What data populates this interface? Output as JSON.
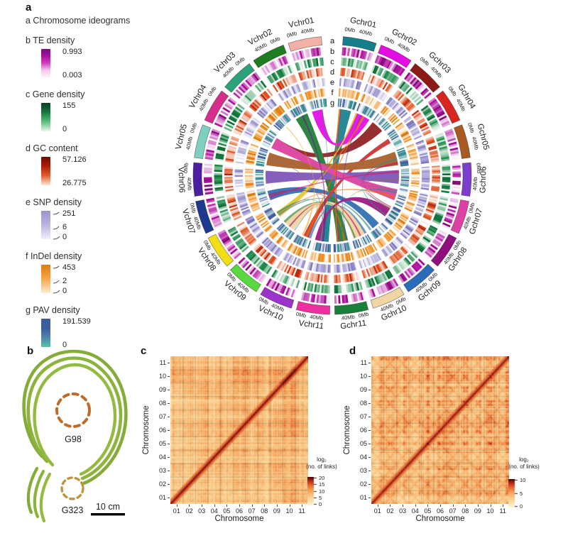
{
  "figure": {
    "panel_labels": {
      "a": "a",
      "b": "b",
      "c": "c",
      "d": "d"
    }
  },
  "legend": {
    "items": [
      {
        "key": "a",
        "title": "a Chromosome ideograms",
        "type": "text"
      },
      {
        "key": "b",
        "title": "b TE density",
        "type": "gradient",
        "gradient": [
          "#7A0B7A",
          "#A511A0",
          "#D33FBC",
          "#F3C9EC",
          "#FBF2FA"
        ],
        "labels": [
          {
            "text": "0.993",
            "pos": "top"
          },
          {
            "text": "0.003",
            "pos": "bottom"
          }
        ]
      },
      {
        "key": "c",
        "title": "c Gene density",
        "type": "gradient",
        "gradient": [
          "#083F20",
          "#157840",
          "#5DBE7A",
          "#EAF6EC"
        ],
        "labels": [
          {
            "text": "155",
            "pos": "top"
          },
          {
            "text": "0",
            "pos": "bottom"
          }
        ]
      },
      {
        "key": "d",
        "title": "d GC content",
        "type": "gradient",
        "gradient": [
          "#6E0B02",
          "#B01C08",
          "#E2602F",
          "#F8E8D8"
        ],
        "labels": [
          {
            "text": "57.126",
            "pos": "top"
          },
          {
            "text": "26.775",
            "pos": "bottom"
          }
        ]
      },
      {
        "key": "e",
        "title": "e SNP density",
        "type": "gradient",
        "leaders": true,
        "gradient": [
          "#9A94CC",
          "#B9B5DE",
          "#F0EFF8"
        ],
        "labels": [
          {
            "text": "251",
            "pos": "top"
          },
          {
            "text": "6",
            "pos": "mid"
          },
          {
            "text": "0",
            "pos": "bottom"
          }
        ]
      },
      {
        "key": "f",
        "title": "f InDel density",
        "type": "gradient",
        "leaders": true,
        "gradient": [
          "#E07C08",
          "#F2A84C",
          "#FCEBD4"
        ],
        "labels": [
          {
            "text": "453",
            "pos": "top"
          },
          {
            "text": "2",
            "pos": "mid"
          },
          {
            "text": "0",
            "pos": "bottom"
          }
        ]
      },
      {
        "key": "g",
        "title": "g PAV density",
        "type": "gradient",
        "gradient": [
          "#3D5C9E",
          "#3D5C9E",
          "#4E86A8",
          "#57C4A8"
        ],
        "labels": [
          {
            "text": "191.539",
            "pos": "top"
          },
          {
            "text": "0",
            "pos": "bottom"
          }
        ]
      }
    ]
  },
  "circos": {
    "ring_letters": [
      "a",
      "b",
      "c",
      "d",
      "e",
      "f",
      "g"
    ],
    "tick_labels": [
      "0Mb",
      "40Mb"
    ],
    "g_chromosomes": [
      {
        "name": "Gchr01",
        "color": "#147E8C"
      },
      {
        "name": "Gchr02",
        "color": "#E40EE4"
      },
      {
        "name": "Gchr03",
        "color": "#8C1A17"
      },
      {
        "name": "Gchr04",
        "color": "#DA2420"
      },
      {
        "name": "Gchr05",
        "color": "#A85A22"
      },
      {
        "name": "Gchr06",
        "color": "#7C3ECC"
      },
      {
        "name": "Gchr07",
        "color": "#DE41A6"
      },
      {
        "name": "Gchr08",
        "color": "#8F0F7E"
      },
      {
        "name": "Gchr09",
        "color": "#2A6CBA"
      },
      {
        "name": "Gchr10",
        "color": "#F1D6A4"
      },
      {
        "name": "Gchr11",
        "color": "#18803B"
      }
    ],
    "v_chromosomes": [
      {
        "name": "Vchr01",
        "color": "#F2B0A6"
      },
      {
        "name": "Vchr02",
        "color": "#1E7C21"
      },
      {
        "name": "Vchr03",
        "color": "#2BA27B"
      },
      {
        "name": "Vchr04",
        "color": "#D62E8C"
      },
      {
        "name": "Vchr05",
        "color": "#7FD0BE"
      },
      {
        "name": "Vchr06",
        "color": "#4A1FA0"
      },
      {
        "name": "Vchr07",
        "color": "#1E3A8F"
      },
      {
        "name": "Vchr08",
        "color": "#F2DE14"
      },
      {
        "name": "Vchr09",
        "color": "#57D93F"
      },
      {
        "name": "Vchr10",
        "color": "#9C33CB"
      },
      {
        "name": "Vchr11",
        "color": "#EE2F9F"
      }
    ],
    "rings": [
      {
        "letter": "b",
        "name": "TE density",
        "base": "#B012A0",
        "dark": "#700A64"
      },
      {
        "letter": "c",
        "name": "Gene density",
        "base": "#1E8A4A",
        "dark": "#0A5A2E"
      },
      {
        "letter": "d",
        "name": "GC content",
        "base": "#E05A28",
        "dark": "#A31208"
      },
      {
        "letter": "e",
        "name": "SNP density",
        "base": "#9B94CE",
        "dark": "#6E66B0"
      },
      {
        "letter": "f",
        "name": "InDel density",
        "base": "#F09020",
        "dark": "#C86E08"
      },
      {
        "letter": "g",
        "name": "PAV density",
        "base": "#3E5C9C",
        "dark": "#2E8B8B"
      }
    ],
    "links": [
      {
        "from": "Gchr01",
        "f0": 0.15,
        "f1": 0.85,
        "to": "Vchr11",
        "t0": 0.15,
        "t1": 0.75,
        "color": "#167F8C"
      },
      {
        "from": "Gchr03",
        "f0": 0.05,
        "f1": 0.85,
        "to": "Vchr04",
        "t0": 0.25,
        "t1": 0.75,
        "color": "#8E1F1F"
      },
      {
        "from": "Gchr02",
        "f0": 0.05,
        "f1": 0.95,
        "to": "Vchr01",
        "t0": 0.05,
        "t1": 0.7,
        "color": "#E20AE2"
      },
      {
        "from": "Gchr11",
        "f0": 0.1,
        "f1": 0.8,
        "to": "Vchr02",
        "t0": 0.1,
        "t1": 0.9,
        "color": "#1D7A33"
      },
      {
        "from": "Gchr09",
        "f0": 0.2,
        "f1": 0.7,
        "to": "Vchr07",
        "t0": 0.2,
        "t1": 0.8,
        "color": "#2D6CB5"
      },
      {
        "from": "Gchr10",
        "f0": 0.1,
        "f1": 0.9,
        "to": "Vchr09",
        "t0": 0.15,
        "t1": 0.85,
        "color": "#EFD3A2"
      },
      {
        "from": "Vchr11",
        "f0": 0.7,
        "f1": 1.0,
        "to": "Gchr08",
        "t0": 0.2,
        "t1": 0.8,
        "color": "#9C1580"
      },
      {
        "from": "Vchr10",
        "f0": 0.25,
        "f1": 0.6,
        "to": "Gchr04",
        "t0": 0.3,
        "t1": 0.6,
        "color": "#C83030"
      },
      {
        "from": "Vchr08",
        "f0": 0.25,
        "f1": 0.55,
        "to": "Gchr02",
        "t0": 0.0,
        "t1": 0.1,
        "color": "#E0C820"
      },
      {
        "from": "Gchr05",
        "f0": 0.05,
        "f1": 0.9,
        "to": "Vchr05",
        "t0": 0.1,
        "t1": 0.9,
        "color": "#A85C28"
      },
      {
        "from": "Gchr06",
        "f0": 0.05,
        "f1": 0.9,
        "to": "Vchr06",
        "t0": 0.1,
        "t1": 0.9,
        "color": "#7C52B8"
      },
      {
        "from": "Gchr07",
        "f0": 0.1,
        "f1": 0.8,
        "to": "Vchr04",
        "t0": 0.05,
        "t1": 0.75,
        "color": "#DC3C9C"
      }
    ]
  },
  "panel_b": {
    "top_label": "G98",
    "bottom_label": "G323",
    "scale_label": "10 cm"
  },
  "heatmaps": [
    {
      "id": "c",
      "xlabel": "Chromosome",
      "ylabel": "Chromosome",
      "xticks": [
        "01",
        "02",
        "03",
        "04",
        "05",
        "06",
        "07",
        "08",
        "09",
        "10",
        "11"
      ],
      "yticks": [
        "11",
        "10",
        "09",
        "08",
        "07",
        "06",
        "05",
        "04",
        "03",
        "02",
        "01"
      ],
      "colorbar": {
        "title_line1": "log₂",
        "title_line2": "(no. of links)",
        "ticks": [
          "20",
          "15",
          "10",
          "5",
          "0"
        ]
      }
    },
    {
      "id": "d",
      "xlabel": "Chromosome",
      "ylabel": "Chromosome",
      "xticks": [
        "01",
        "02",
        "03",
        "04",
        "05",
        "06",
        "07",
        "08",
        "09",
        "10",
        "11"
      ],
      "yticks": [
        "11",
        "10",
        "09",
        "08",
        "07",
        "06",
        "05",
        "04",
        "03",
        "02",
        "01"
      ],
      "colorbar": {
        "title_line1": "log₂",
        "title_line2": "(no. of links)",
        "ticks": [
          "10",
          "5",
          "0"
        ]
      }
    }
  ],
  "chart_data": [
    {
      "type": "heatmap",
      "panel": "c",
      "xlabel": "Chromosome",
      "ylabel": "Chromosome",
      "x_categories": [
        "01",
        "02",
        "03",
        "04",
        "05",
        "06",
        "07",
        "08",
        "09",
        "10",
        "11"
      ],
      "y_categories": [
        "01",
        "02",
        "03",
        "04",
        "05",
        "06",
        "07",
        "08",
        "09",
        "10",
        "11"
      ],
      "colorbar_label": "log₂ (no. of links)",
      "colorbar_ticks": [
        0,
        5,
        10,
        15,
        20
      ],
      "value_range": [
        0,
        20
      ],
      "legend_position": "right",
      "pattern": "Hi-C contact map: strong dark-red main diagonal, orange plaid inter-chromosomal background"
    },
    {
      "type": "heatmap",
      "panel": "d",
      "xlabel": "Chromosome",
      "ylabel": "Chromosome",
      "x_categories": [
        "01",
        "02",
        "03",
        "04",
        "05",
        "06",
        "07",
        "08",
        "09",
        "10",
        "11"
      ],
      "y_categories": [
        "01",
        "02",
        "03",
        "04",
        "05",
        "06",
        "07",
        "08",
        "09",
        "10",
        "11"
      ],
      "colorbar_label": "log₂ (no. of links)",
      "colorbar_ticks": [
        0,
        5,
        10
      ],
      "value_range": [
        0,
        10
      ],
      "legend_position": "right",
      "pattern": "Hi-C contact map: dark-red diagonal with cross-shaped plaid blocks in every chromosome pair"
    },
    {
      "type": "circos",
      "panel": "a",
      "tracks": [
        "a Chromosome ideograms",
        "b TE density",
        "c Gene density",
        "d GC content",
        "e SNP density",
        "f InDel density",
        "g PAV density"
      ],
      "chromosomes": [
        "Gchr01",
        "Gchr02",
        "Gchr03",
        "Gchr04",
        "Gchr05",
        "Gchr06",
        "Gchr07",
        "Gchr08",
        "Gchr09",
        "Gchr10",
        "Gchr11",
        "Vchr11",
        "Vchr10",
        "Vchr09",
        "Vchr08",
        "Vchr07",
        "Vchr06",
        "Vchr05",
        "Vchr04",
        "Vchr03",
        "Vchr02",
        "Vchr01"
      ],
      "axis_ticks_per_chromosome": [
        "0Mb",
        "40Mb"
      ]
    }
  ]
}
